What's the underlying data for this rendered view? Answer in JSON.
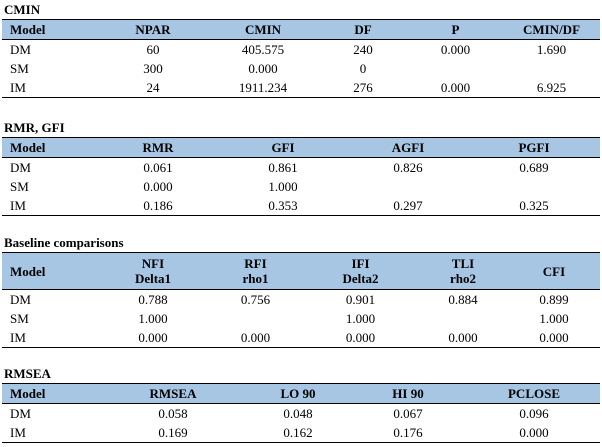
{
  "cmin": {
    "title": "CMIN",
    "headers": [
      "Model",
      "NPAR",
      "CMIN",
      "DF",
      "P",
      "CMIN/DF"
    ],
    "rows": [
      [
        "DM",
        "60",
        "405.575",
        "240",
        "0.000",
        "1.690"
      ],
      [
        "SM",
        "300",
        "0.000",
        "0",
        "",
        ""
      ],
      [
        "IM",
        "24",
        "1911.234",
        "276",
        "0.000",
        "6.925"
      ]
    ]
  },
  "rmr": {
    "title": "RMR, GFI",
    "headers": [
      "Model",
      "RMR",
      "GFI",
      "AGFI",
      "PGFI"
    ],
    "rows": [
      [
        "DM",
        "0.061",
        "0.861",
        "0.826",
        "0.689"
      ],
      [
        "SM",
        "0.000",
        "1.000",
        "",
        ""
      ],
      [
        "IM",
        "0.186",
        "0.353",
        "0.297",
        "0.325"
      ]
    ]
  },
  "baseline": {
    "title": "Baseline comparisons",
    "headers": [
      {
        "line1": "Model",
        "line2": ""
      },
      {
        "line1": "NFI",
        "line2": "Delta1"
      },
      {
        "line1": "RFI",
        "line2": "rho1"
      },
      {
        "line1": "IFI",
        "line2": "Delta2"
      },
      {
        "line1": "TLI",
        "line2": "rho2"
      },
      {
        "line1": "CFI",
        "line2": ""
      }
    ],
    "rows": [
      [
        "DM",
        "0.788",
        "0.756",
        "0.901",
        "0.884",
        "0.899"
      ],
      [
        "SM",
        "1.000",
        "",
        "1.000",
        "",
        "1.000"
      ],
      [
        "IM",
        "0.000",
        "0.000",
        "0.000",
        "0.000",
        "0.000"
      ]
    ]
  },
  "rmsea": {
    "title": "RMSEA",
    "headers": [
      "Model",
      "RMSEA",
      "LO 90",
      "HI 90",
      "PCLOSE"
    ],
    "rows": [
      [
        "DM",
        "0.058",
        "0.048",
        "0.067",
        "0.096"
      ],
      [
        "IM",
        "0.169",
        "0.162",
        "0.176",
        "0.000"
      ]
    ]
  }
}
